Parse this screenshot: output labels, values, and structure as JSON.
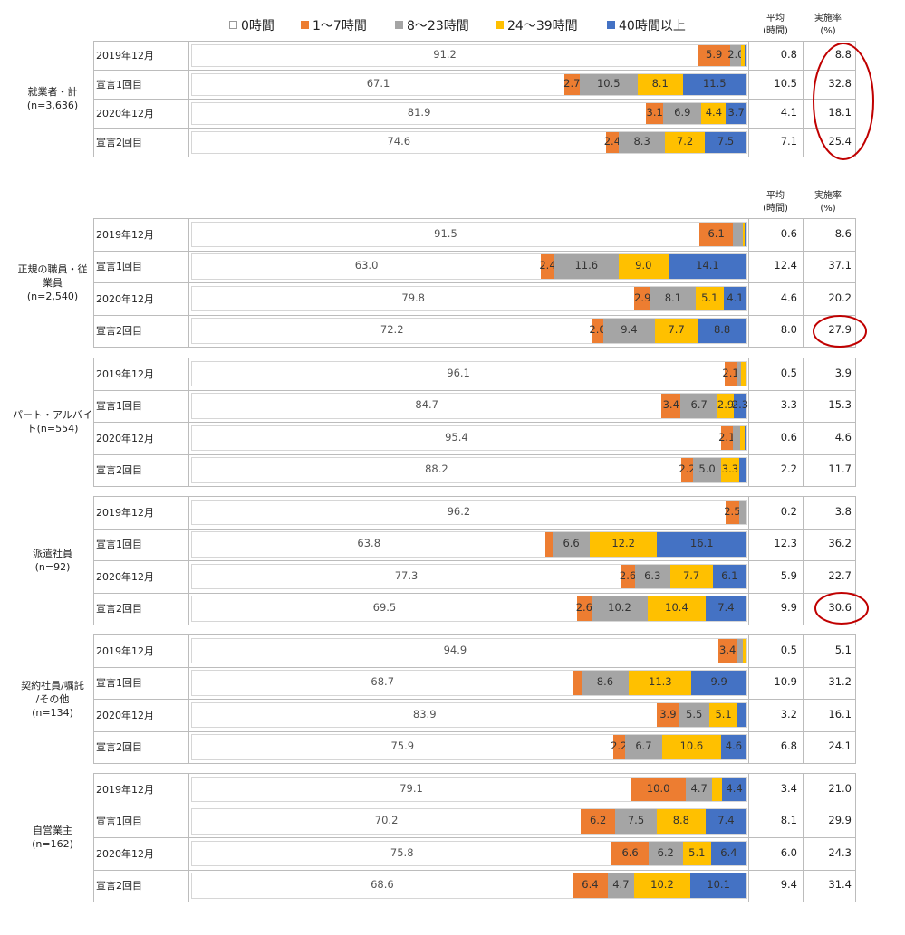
{
  "legend": {
    "items": [
      {
        "label": "0時間",
        "color": "#ffffff"
      },
      {
        "label": "1～7時間",
        "color": "#ed7d31"
      },
      {
        "label": "8～23時間",
        "color": "#a5a5a5"
      },
      {
        "label": "24～39時間",
        "color": "#ffc000"
      },
      {
        "label": "40時間以上",
        "color": "#4472c4"
      }
    ]
  },
  "headers": {
    "avg": "平均\n(時間)",
    "rate": "実施率\n(%)"
  },
  "chart_data": {
    "type": "bar",
    "stacked": "horizontal-100%",
    "series_names": [
      "0時間",
      "1～7時間",
      "8～23時間",
      "24～39時間",
      "40時間以上"
    ],
    "series_colors": [
      "#ffffff",
      "#ed7d31",
      "#a5a5a5",
      "#ffc000",
      "#4472c4"
    ],
    "groups": [
      {
        "label": "就業者・計\n(n=3,636)",
        "rows": [
          {
            "label": "2019年12月",
            "values": [
              91.2,
              5.9,
              2.0,
              0.5,
              0.4
            ],
            "labels": [
              "91.2",
              "5.9",
              "2.0",
              "",
              ""
            ],
            "avg": "0.8",
            "rate": "8.8"
          },
          {
            "label": "宣言1回目",
            "values": [
              67.1,
              2.7,
              10.5,
              8.1,
              11.5
            ],
            "labels": [
              "67.1",
              "2.7",
              "10.5",
              "8.1",
              "11.5"
            ],
            "avg": "10.5",
            "rate": "32.8"
          },
          {
            "label": "2020年12月",
            "values": [
              81.9,
              3.1,
              6.9,
              4.4,
              3.7
            ],
            "labels": [
              "81.9",
              "3.1",
              "6.9",
              "4.4",
              "3.7"
            ],
            "avg": "4.1",
            "rate": "18.1"
          },
          {
            "label": "宣言2回目",
            "values": [
              74.6,
              2.4,
              8.3,
              7.2,
              7.5
            ],
            "labels": [
              "74.6",
              "2.4",
              "8.3",
              "7.2",
              "7.5"
            ],
            "avg": "7.1",
            "rate": "25.4"
          }
        ]
      },
      {
        "label": "正規の職員・従\n業員\n(n=2,540)",
        "rows": [
          {
            "label": "2019年12月",
            "values": [
              91.5,
              6.1,
              1.8,
              0.2,
              0.4
            ],
            "labels": [
              "91.5",
              "6.1",
              "",
              "",
              ""
            ],
            "avg": "0.6",
            "rate": "8.6"
          },
          {
            "label": "宣言1回目",
            "values": [
              63.0,
              2.4,
              11.6,
              9.0,
              14.1
            ],
            "labels": [
              "63.0",
              "2.4",
              "11.6",
              "9.0",
              "14.1"
            ],
            "avg": "12.4",
            "rate": "37.1"
          },
          {
            "label": "2020年12月",
            "values": [
              79.8,
              2.9,
              8.1,
              5.1,
              4.1
            ],
            "labels": [
              "79.8",
              "2.9",
              "8.1",
              "5.1",
              "4.1"
            ],
            "avg": "4.6",
            "rate": "20.2"
          },
          {
            "label": "宣言2回目",
            "values": [
              72.2,
              2.0,
              9.4,
              7.7,
              8.8
            ],
            "labels": [
              "72.2",
              "2.0",
              "9.4",
              "7.7",
              "8.8"
            ],
            "avg": "8.0",
            "rate": "27.9"
          }
        ]
      },
      {
        "label": "パート・アルバイ\nト(n=554)",
        "rows": [
          {
            "label": "2019年12月",
            "values": [
              96.1,
              2.1,
              0.9,
              0.7,
              0.2
            ],
            "labels": [
              "96.1",
              "2.1",
              "",
              "",
              ""
            ],
            "avg": "0.5",
            "rate": "3.9"
          },
          {
            "label": "宣言1回目",
            "values": [
              84.7,
              3.4,
              6.7,
              2.9,
              2.3
            ],
            "labels": [
              "84.7",
              "3.4",
              "6.7",
              "2.9",
              "2.3"
            ],
            "avg": "3.3",
            "rate": "15.3"
          },
          {
            "label": "2020年12月",
            "values": [
              95.4,
              2.1,
              1.3,
              0.8,
              0.4
            ],
            "labels": [
              "95.4",
              "2.1",
              "",
              "",
              ""
            ],
            "avg": "0.6",
            "rate": "4.6"
          },
          {
            "label": "宣言2回目",
            "values": [
              88.2,
              2.2,
              5.0,
              3.3,
              1.3
            ],
            "labels": [
              "88.2",
              "2.2",
              "5.0",
              "3.3",
              ""
            ],
            "avg": "2.2",
            "rate": "11.7"
          }
        ]
      },
      {
        "label": "派遣社員\n(n=92)",
        "rows": [
          {
            "label": "2019年12月",
            "values": [
              96.2,
              2.5,
              1.3,
              0,
              0
            ],
            "labels": [
              "96.2",
              "2.5",
              "",
              "",
              ""
            ],
            "avg": "0.2",
            "rate": "3.8"
          },
          {
            "label": "宣言1回目",
            "values": [
              63.8,
              1.3,
              6.6,
              12.2,
              16.1
            ],
            "labels": [
              "63.8",
              "",
              "6.6",
              "12.2",
              "16.1"
            ],
            "avg": "12.3",
            "rate": "36.2"
          },
          {
            "label": "2020年12月",
            "values": [
              77.3,
              2.6,
              6.3,
              7.7,
              6.1
            ],
            "labels": [
              "77.3",
              "2.6",
              "6.3",
              "7.7",
              "6.1"
            ],
            "avg": "5.9",
            "rate": "22.7"
          },
          {
            "label": "宣言2回目",
            "values": [
              69.5,
              2.6,
              10.2,
              10.4,
              7.4
            ],
            "labels": [
              "69.5",
              "2.6",
              "10.2",
              "10.4",
              "7.4"
            ],
            "avg": "9.9",
            "rate": "30.6"
          }
        ]
      },
      {
        "label": "契約社員/嘱託\n/その他\n(n=134)",
        "rows": [
          {
            "label": "2019年12月",
            "values": [
              94.9,
              3.4,
              1.1,
              0.6,
              0
            ],
            "labels": [
              "94.9",
              "3.4",
              "",
              "",
              ""
            ],
            "avg": "0.5",
            "rate": "5.1"
          },
          {
            "label": "宣言1回目",
            "values": [
              68.7,
              1.5,
              8.6,
              11.3,
              9.9
            ],
            "labels": [
              "68.7",
              "",
              "8.6",
              "11.3",
              "9.9"
            ],
            "avg": "10.9",
            "rate": "31.2"
          },
          {
            "label": "2020年12月",
            "values": [
              83.9,
              3.9,
              5.5,
              5.1,
              1.6
            ],
            "labels": [
              "83.9",
              "3.9",
              "5.5",
              "5.1",
              ""
            ],
            "avg": "3.2",
            "rate": "16.1"
          },
          {
            "label": "宣言2回目",
            "values": [
              75.9,
              2.2,
              6.7,
              10.6,
              4.6
            ],
            "labels": [
              "75.9",
              "2.2",
              "6.7",
              "10.6",
              "4.6"
            ],
            "avg": "6.8",
            "rate": "24.1"
          }
        ]
      },
      {
        "label": "自営業主\n(n=162)",
        "rows": [
          {
            "label": "2019年12月",
            "values": [
              79.1,
              10.0,
              4.7,
              1.8,
              4.4
            ],
            "labels": [
              "79.1",
              "10.0",
              "4.7",
              "",
              "4.4"
            ],
            "avg": "3.4",
            "rate": "21.0"
          },
          {
            "label": "宣言1回目",
            "values": [
              70.2,
              6.2,
              7.5,
              8.8,
              7.4
            ],
            "labels": [
              "70.2",
              "6.2",
              "7.5",
              "8.8",
              "7.4"
            ],
            "avg": "8.1",
            "rate": "29.9"
          },
          {
            "label": "2020年12月",
            "values": [
              75.8,
              6.6,
              6.2,
              5.1,
              6.4
            ],
            "labels": [
              "75.8",
              "6.6",
              "6.2",
              "5.1",
              "6.4"
            ],
            "avg": "6.0",
            "rate": "24.3"
          },
          {
            "label": "宣言2回目",
            "values": [
              68.6,
              6.4,
              4.7,
              10.2,
              10.1
            ],
            "labels": [
              "68.6",
              "6.4",
              "4.7",
              "10.2",
              "10.1"
            ],
            "avg": "9.4",
            "rate": "31.4"
          }
        ]
      }
    ],
    "highlight_color": "#c00000",
    "highlighted": [
      "就業者・計 実施率 (all rows)",
      "正規の職員・従業員 宣言2回目 実施率",
      "派遣社員 宣言2回目 実施率"
    ]
  }
}
